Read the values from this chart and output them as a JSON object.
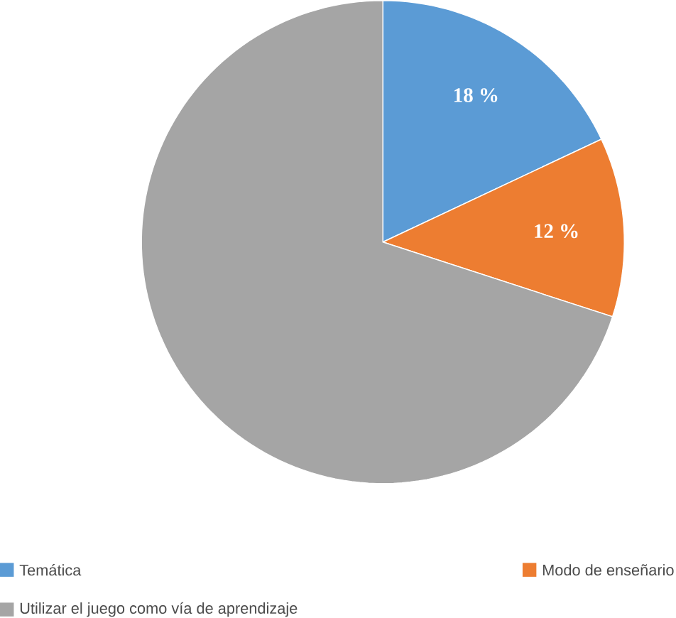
{
  "chart_data": {
    "type": "pie",
    "categories": [
      "Temática",
      "Modo de enseñario",
      "Utilizar el juego como vía de aprendizaje"
    ],
    "values": [
      18,
      12,
      70
    ],
    "colors": [
      "#5b9bd5",
      "#ed7d31",
      "#a5a5a5"
    ],
    "value_labels": [
      "18 %",
      "12 %",
      null
    ],
    "legend": "bottom"
  }
}
